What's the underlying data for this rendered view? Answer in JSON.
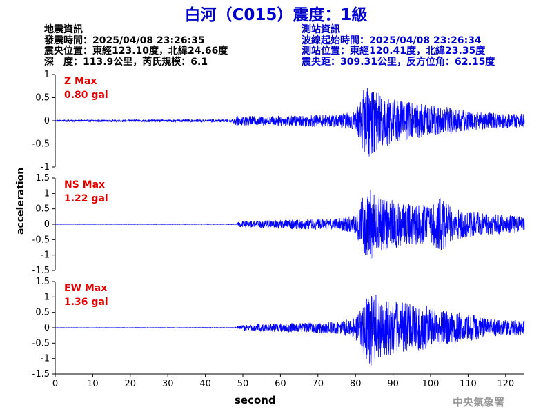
{
  "title": "白河（C015）震度：1級",
  "event_info": {
    "heading": "地震資訊",
    "lines": [
      "發震時間：2025/04/08 23:26:35",
      "震央位置：東經123.10度，北緯24.66度",
      "深　度：113.9公里，芮氏規模：6.1"
    ]
  },
  "station_info": {
    "heading": "測站資訊",
    "lines": [
      "波線起始時間：2025/04/08 23:26:34",
      "測站位置：東經120.41度，北緯23.35度",
      "震央距：309.31公里，反方位角：62.15度"
    ]
  },
  "credit": "中央氣象署",
  "colors": {
    "trace": "#0000ff",
    "max_label": "#e00000",
    "title": "#0000cc"
  },
  "chart_data": [
    {
      "type": "line",
      "component": "Z",
      "max_label": "Z Max",
      "max_value": "0.80 gal",
      "ylim": [
        -1,
        1
      ],
      "yticks": [
        1,
        0.5,
        0,
        -0.5,
        -1
      ],
      "xlim": [
        0,
        125
      ],
      "envelope": [
        [
          0,
          0.02
        ],
        [
          47,
          0.03
        ],
        [
          48,
          0.1
        ],
        [
          55,
          0.1
        ],
        [
          60,
          0.11
        ],
        [
          65,
          0.12
        ],
        [
          70,
          0.13
        ],
        [
          75,
          0.14
        ],
        [
          80,
          0.2
        ],
        [
          82,
          0.65
        ],
        [
          84,
          0.8
        ],
        [
          86,
          0.62
        ],
        [
          88,
          0.6
        ],
        [
          90,
          0.5
        ],
        [
          95,
          0.4
        ],
        [
          100,
          0.35
        ],
        [
          105,
          0.3
        ],
        [
          110,
          0.22
        ],
        [
          115,
          0.18
        ],
        [
          120,
          0.17
        ],
        [
          125,
          0.15
        ]
      ]
    },
    {
      "type": "line",
      "component": "NS",
      "max_label": "NS Max",
      "max_value": "1.22 gal",
      "ylim": [
        -1.5,
        1.5
      ],
      "yticks": [
        1.5,
        1,
        0.5,
        0,
        -0.5,
        -1,
        -1.5
      ],
      "xlim": [
        0,
        125
      ],
      "envelope": [
        [
          0,
          0.005
        ],
        [
          48,
          0.01
        ],
        [
          49,
          0.1
        ],
        [
          55,
          0.12
        ],
        [
          65,
          0.16
        ],
        [
          75,
          0.18
        ],
        [
          80,
          0.3
        ],
        [
          82,
          0.9
        ],
        [
          84,
          1.22
        ],
        [
          86,
          0.9
        ],
        [
          90,
          0.8
        ],
        [
          95,
          0.7
        ],
        [
          100,
          0.6
        ],
        [
          103,
          0.95
        ],
        [
          106,
          0.5
        ],
        [
          110,
          0.45
        ],
        [
          115,
          0.35
        ],
        [
          120,
          0.3
        ],
        [
          125,
          0.25
        ]
      ]
    },
    {
      "type": "line",
      "component": "EW",
      "max_label": "EW Max",
      "max_value": "1.36 gal",
      "ylim": [
        -1.5,
        1.5
      ],
      "yticks": [
        1.5,
        1,
        0.5,
        0,
        -0.5,
        -1,
        -1.5
      ],
      "xlim": [
        0,
        125
      ],
      "envelope": [
        [
          0,
          0.005
        ],
        [
          48,
          0.01
        ],
        [
          49,
          0.08
        ],
        [
          55,
          0.12
        ],
        [
          65,
          0.16
        ],
        [
          75,
          0.2
        ],
        [
          80,
          0.35
        ],
        [
          82,
          1.0
        ],
        [
          84,
          1.36
        ],
        [
          86,
          1.0
        ],
        [
          88,
          0.9
        ],
        [
          92,
          0.85
        ],
        [
          96,
          0.75
        ],
        [
          100,
          0.7
        ],
        [
          104,
          0.55
        ],
        [
          108,
          0.5
        ],
        [
          112,
          0.4
        ],
        [
          116,
          0.3
        ],
        [
          120,
          0.28
        ],
        [
          125,
          0.22
        ]
      ]
    }
  ],
  "x_axis": {
    "label": "second",
    "ticks": [
      0,
      10,
      20,
      30,
      40,
      50,
      60,
      70,
      80,
      90,
      100,
      110,
      120
    ]
  },
  "y_axis_label": "acceleration"
}
